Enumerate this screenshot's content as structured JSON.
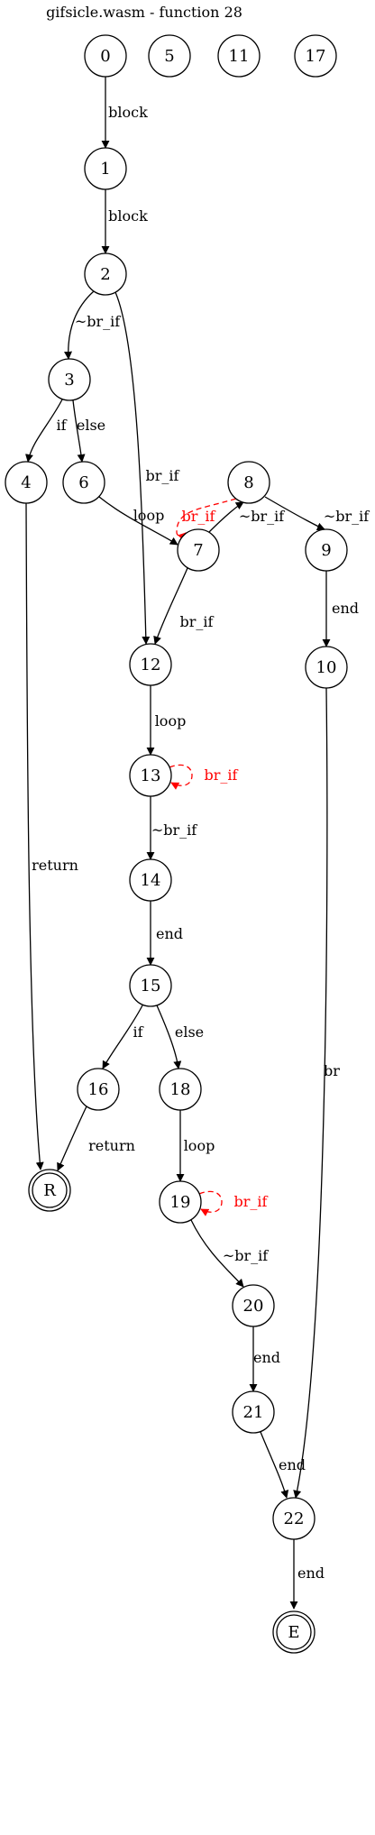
{
  "title": "gifsicle.wasm - function 28",
  "colors": {
    "normal": "#000000",
    "highlight": "#ff0000"
  },
  "nodes": [
    {
      "id": "0",
      "label": "0"
    },
    {
      "id": "5",
      "label": "5"
    },
    {
      "id": "11",
      "label": "11"
    },
    {
      "id": "17",
      "label": "17"
    },
    {
      "id": "1",
      "label": "1"
    },
    {
      "id": "2",
      "label": "2"
    },
    {
      "id": "3",
      "label": "3"
    },
    {
      "id": "4",
      "label": "4"
    },
    {
      "id": "6",
      "label": "6"
    },
    {
      "id": "7",
      "label": "7"
    },
    {
      "id": "8",
      "label": "8"
    },
    {
      "id": "9",
      "label": "9"
    },
    {
      "id": "10",
      "label": "10"
    },
    {
      "id": "12",
      "label": "12"
    },
    {
      "id": "13",
      "label": "13"
    },
    {
      "id": "14",
      "label": "14"
    },
    {
      "id": "15",
      "label": "15"
    },
    {
      "id": "16",
      "label": "16"
    },
    {
      "id": "18",
      "label": "18"
    },
    {
      "id": "19",
      "label": "19"
    },
    {
      "id": "20",
      "label": "20"
    },
    {
      "id": "21",
      "label": "21"
    },
    {
      "id": "22",
      "label": "22"
    },
    {
      "id": "R",
      "label": "R",
      "double": true
    },
    {
      "id": "E",
      "label": "E",
      "double": true
    }
  ],
  "edges": [
    {
      "from": "0",
      "to": "1",
      "label": "block"
    },
    {
      "from": "1",
      "to": "2",
      "label": "block"
    },
    {
      "from": "2",
      "to": "3",
      "label": "~br_if"
    },
    {
      "from": "2",
      "to": "12",
      "label": "br_if"
    },
    {
      "from": "3",
      "to": "4",
      "label": "if"
    },
    {
      "from": "3",
      "to": "6",
      "label": "else"
    },
    {
      "from": "4",
      "to": "R",
      "label": "return"
    },
    {
      "from": "6",
      "to": "7",
      "label": "loop"
    },
    {
      "from": "8",
      "to": "7",
      "label": "br_if",
      "highlight": true,
      "dashed": true
    },
    {
      "from": "7",
      "to": "8",
      "label": "~br_if"
    },
    {
      "from": "8",
      "to": "9",
      "label": "~br_if"
    },
    {
      "from": "7",
      "to": "12",
      "label": "br_if"
    },
    {
      "from": "9",
      "to": "10",
      "label": "end"
    },
    {
      "from": "10",
      "to": "22",
      "label": "br"
    },
    {
      "from": "12",
      "to": "13",
      "label": "loop"
    },
    {
      "from": "13",
      "to": "13",
      "label": "br_if",
      "highlight": true,
      "dashed": true
    },
    {
      "from": "13",
      "to": "14",
      "label": "~br_if"
    },
    {
      "from": "14",
      "to": "15",
      "label": "end"
    },
    {
      "from": "15",
      "to": "16",
      "label": "if"
    },
    {
      "from": "15",
      "to": "18",
      "label": "else"
    },
    {
      "from": "16",
      "to": "R",
      "label": "return"
    },
    {
      "from": "18",
      "to": "19",
      "label": "loop"
    },
    {
      "from": "19",
      "to": "19",
      "label": "br_if",
      "highlight": true,
      "dashed": true
    },
    {
      "from": "19",
      "to": "20",
      "label": "~br_if"
    },
    {
      "from": "20",
      "to": "21",
      "label": "end"
    },
    {
      "from": "21",
      "to": "22",
      "label": "end"
    },
    {
      "from": "22",
      "to": "E",
      "label": "end"
    }
  ]
}
